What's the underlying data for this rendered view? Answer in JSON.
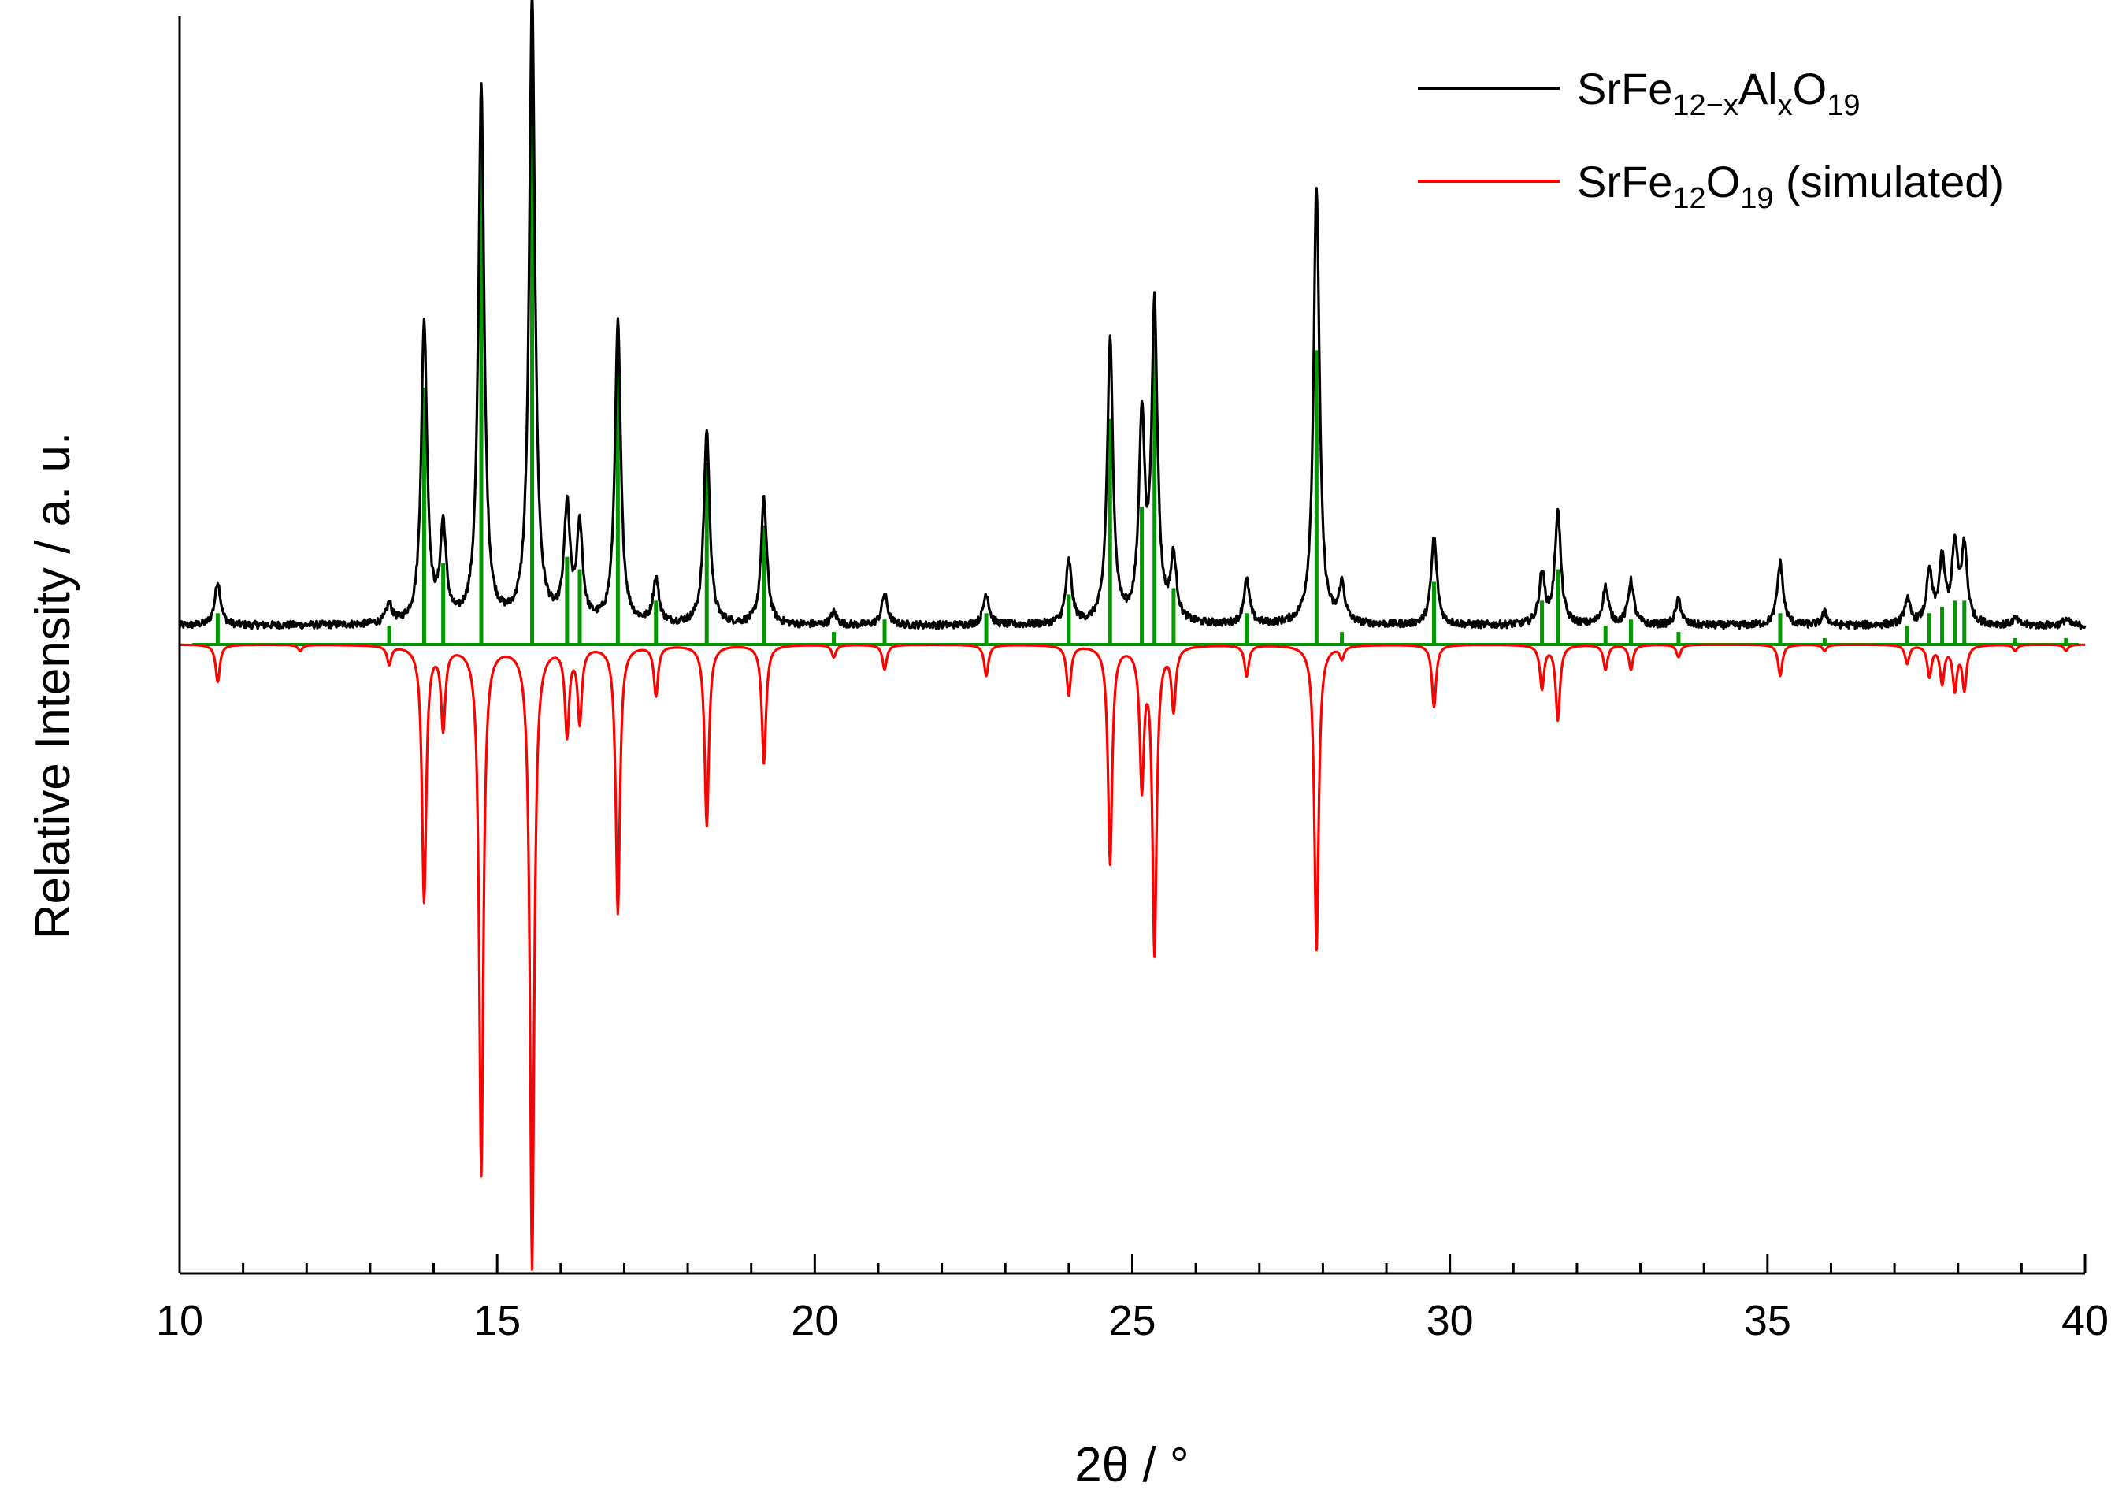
{
  "chart_data": {
    "type": "line",
    "xlabel": "2θ / °",
    "ylabel": "Relative Intensity / a. u.",
    "xlim": [
      10,
      40
    ],
    "ylim": [
      -1.0,
      1.0
    ],
    "x_ticks": [
      10,
      15,
      20,
      25,
      30,
      35,
      40
    ],
    "x_tick_labels": [
      "10",
      "15",
      "20",
      "25",
      "30",
      "35",
      "40"
    ],
    "grid": false,
    "legend_position": "top-right",
    "colors": {
      "experimental": "#000000",
      "simulated": "#ff0000",
      "reflections": "#009900"
    },
    "legend": [
      {
        "parts": [
          [
            "SrFe",
            "normal"
          ],
          [
            "12−x",
            "sub"
          ],
          [
            "Al",
            "normal"
          ],
          [
            "x",
            "sub"
          ],
          [
            "O",
            "normal"
          ],
          [
            "19",
            "sub"
          ]
        ],
        "color": "#000000"
      },
      {
        "parts": [
          [
            "SrFe",
            "normal"
          ],
          [
            "12",
            "sub"
          ],
          [
            "O",
            "normal"
          ],
          [
            "19",
            "sub"
          ],
          [
            " (simulated)",
            "normal"
          ]
        ],
        "color": "#ff0000"
      }
    ],
    "peaks": [
      {
        "x": 10.6,
        "exp": 0.07,
        "sim": 0.06,
        "ref": 0.05
      },
      {
        "x": 11.9,
        "exp": 0.0,
        "sim": 0.01,
        "ref": 0.0
      },
      {
        "x": 13.3,
        "exp": 0.03,
        "sim": 0.03,
        "ref": 0.03
      },
      {
        "x": 13.85,
        "exp": 0.48,
        "sim": 0.41,
        "ref": 0.41
      },
      {
        "x": 14.15,
        "exp": 0.15,
        "sim": 0.13,
        "ref": 0.13
      },
      {
        "x": 14.75,
        "exp": 0.86,
        "sim": 0.85,
        "ref": 0.86
      },
      {
        "x": 15.55,
        "exp": 1.0,
        "sim": 1.0,
        "ref": 1.0
      },
      {
        "x": 16.1,
        "exp": 0.18,
        "sim": 0.14,
        "ref": 0.14
      },
      {
        "x": 16.3,
        "exp": 0.15,
        "sim": 0.12,
        "ref": 0.12
      },
      {
        "x": 16.9,
        "exp": 0.48,
        "sim": 0.43,
        "ref": 0.43
      },
      {
        "x": 17.5,
        "exp": 0.07,
        "sim": 0.08,
        "ref": 0.07
      },
      {
        "x": 18.3,
        "exp": 0.31,
        "sim": 0.29,
        "ref": 0.29
      },
      {
        "x": 19.2,
        "exp": 0.2,
        "sim": 0.19,
        "ref": 0.19
      },
      {
        "x": 20.3,
        "exp": 0.02,
        "sim": 0.02,
        "ref": 0.02
      },
      {
        "x": 21.1,
        "exp": 0.05,
        "sim": 0.04,
        "ref": 0.04
      },
      {
        "x": 22.7,
        "exp": 0.05,
        "sim": 0.05,
        "ref": 0.05
      },
      {
        "x": 24.0,
        "exp": 0.1,
        "sim": 0.08,
        "ref": 0.08
      },
      {
        "x": 24.65,
        "exp": 0.45,
        "sim": 0.35,
        "ref": 0.36
      },
      {
        "x": 25.15,
        "exp": 0.32,
        "sim": 0.22,
        "ref": 0.22
      },
      {
        "x": 25.35,
        "exp": 0.5,
        "sim": 0.49,
        "ref": 0.49
      },
      {
        "x": 25.65,
        "exp": 0.1,
        "sim": 0.1,
        "ref": 0.09
      },
      {
        "x": 26.8,
        "exp": 0.07,
        "sim": 0.05,
        "ref": 0.05
      },
      {
        "x": 27.9,
        "exp": 0.7,
        "sim": 0.49,
        "ref": 0.47
      },
      {
        "x": 28.3,
        "exp": 0.06,
        "sim": 0.02,
        "ref": 0.02
      },
      {
        "x": 29.75,
        "exp": 0.14,
        "sim": 0.1,
        "ref": 0.1
      },
      {
        "x": 31.45,
        "exp": 0.08,
        "sim": 0.07,
        "ref": 0.07
      },
      {
        "x": 31.7,
        "exp": 0.18,
        "sim": 0.12,
        "ref": 0.12
      },
      {
        "x": 32.45,
        "exp": 0.06,
        "sim": 0.04,
        "ref": 0.03
      },
      {
        "x": 32.85,
        "exp": 0.07,
        "sim": 0.04,
        "ref": 0.04
      },
      {
        "x": 33.6,
        "exp": 0.04,
        "sim": 0.02,
        "ref": 0.02
      },
      {
        "x": 35.2,
        "exp": 0.1,
        "sim": 0.05,
        "ref": 0.05
      },
      {
        "x": 35.9,
        "exp": 0.02,
        "sim": 0.01,
        "ref": 0.01
      },
      {
        "x": 37.2,
        "exp": 0.04,
        "sim": 0.03,
        "ref": 0.03
      },
      {
        "x": 37.55,
        "exp": 0.08,
        "sim": 0.05,
        "ref": 0.05
      },
      {
        "x": 37.75,
        "exp": 0.1,
        "sim": 0.06,
        "ref": 0.06
      },
      {
        "x": 37.95,
        "exp": 0.12,
        "sim": 0.07,
        "ref": 0.07
      },
      {
        "x": 38.1,
        "exp": 0.12,
        "sim": 0.07,
        "ref": 0.07
      },
      {
        "x": 38.9,
        "exp": 0.01,
        "sim": 0.01,
        "ref": 0.01
      },
      {
        "x": 39.7,
        "exp": 0.01,
        "sim": 0.01,
        "ref": 0.01
      }
    ]
  }
}
